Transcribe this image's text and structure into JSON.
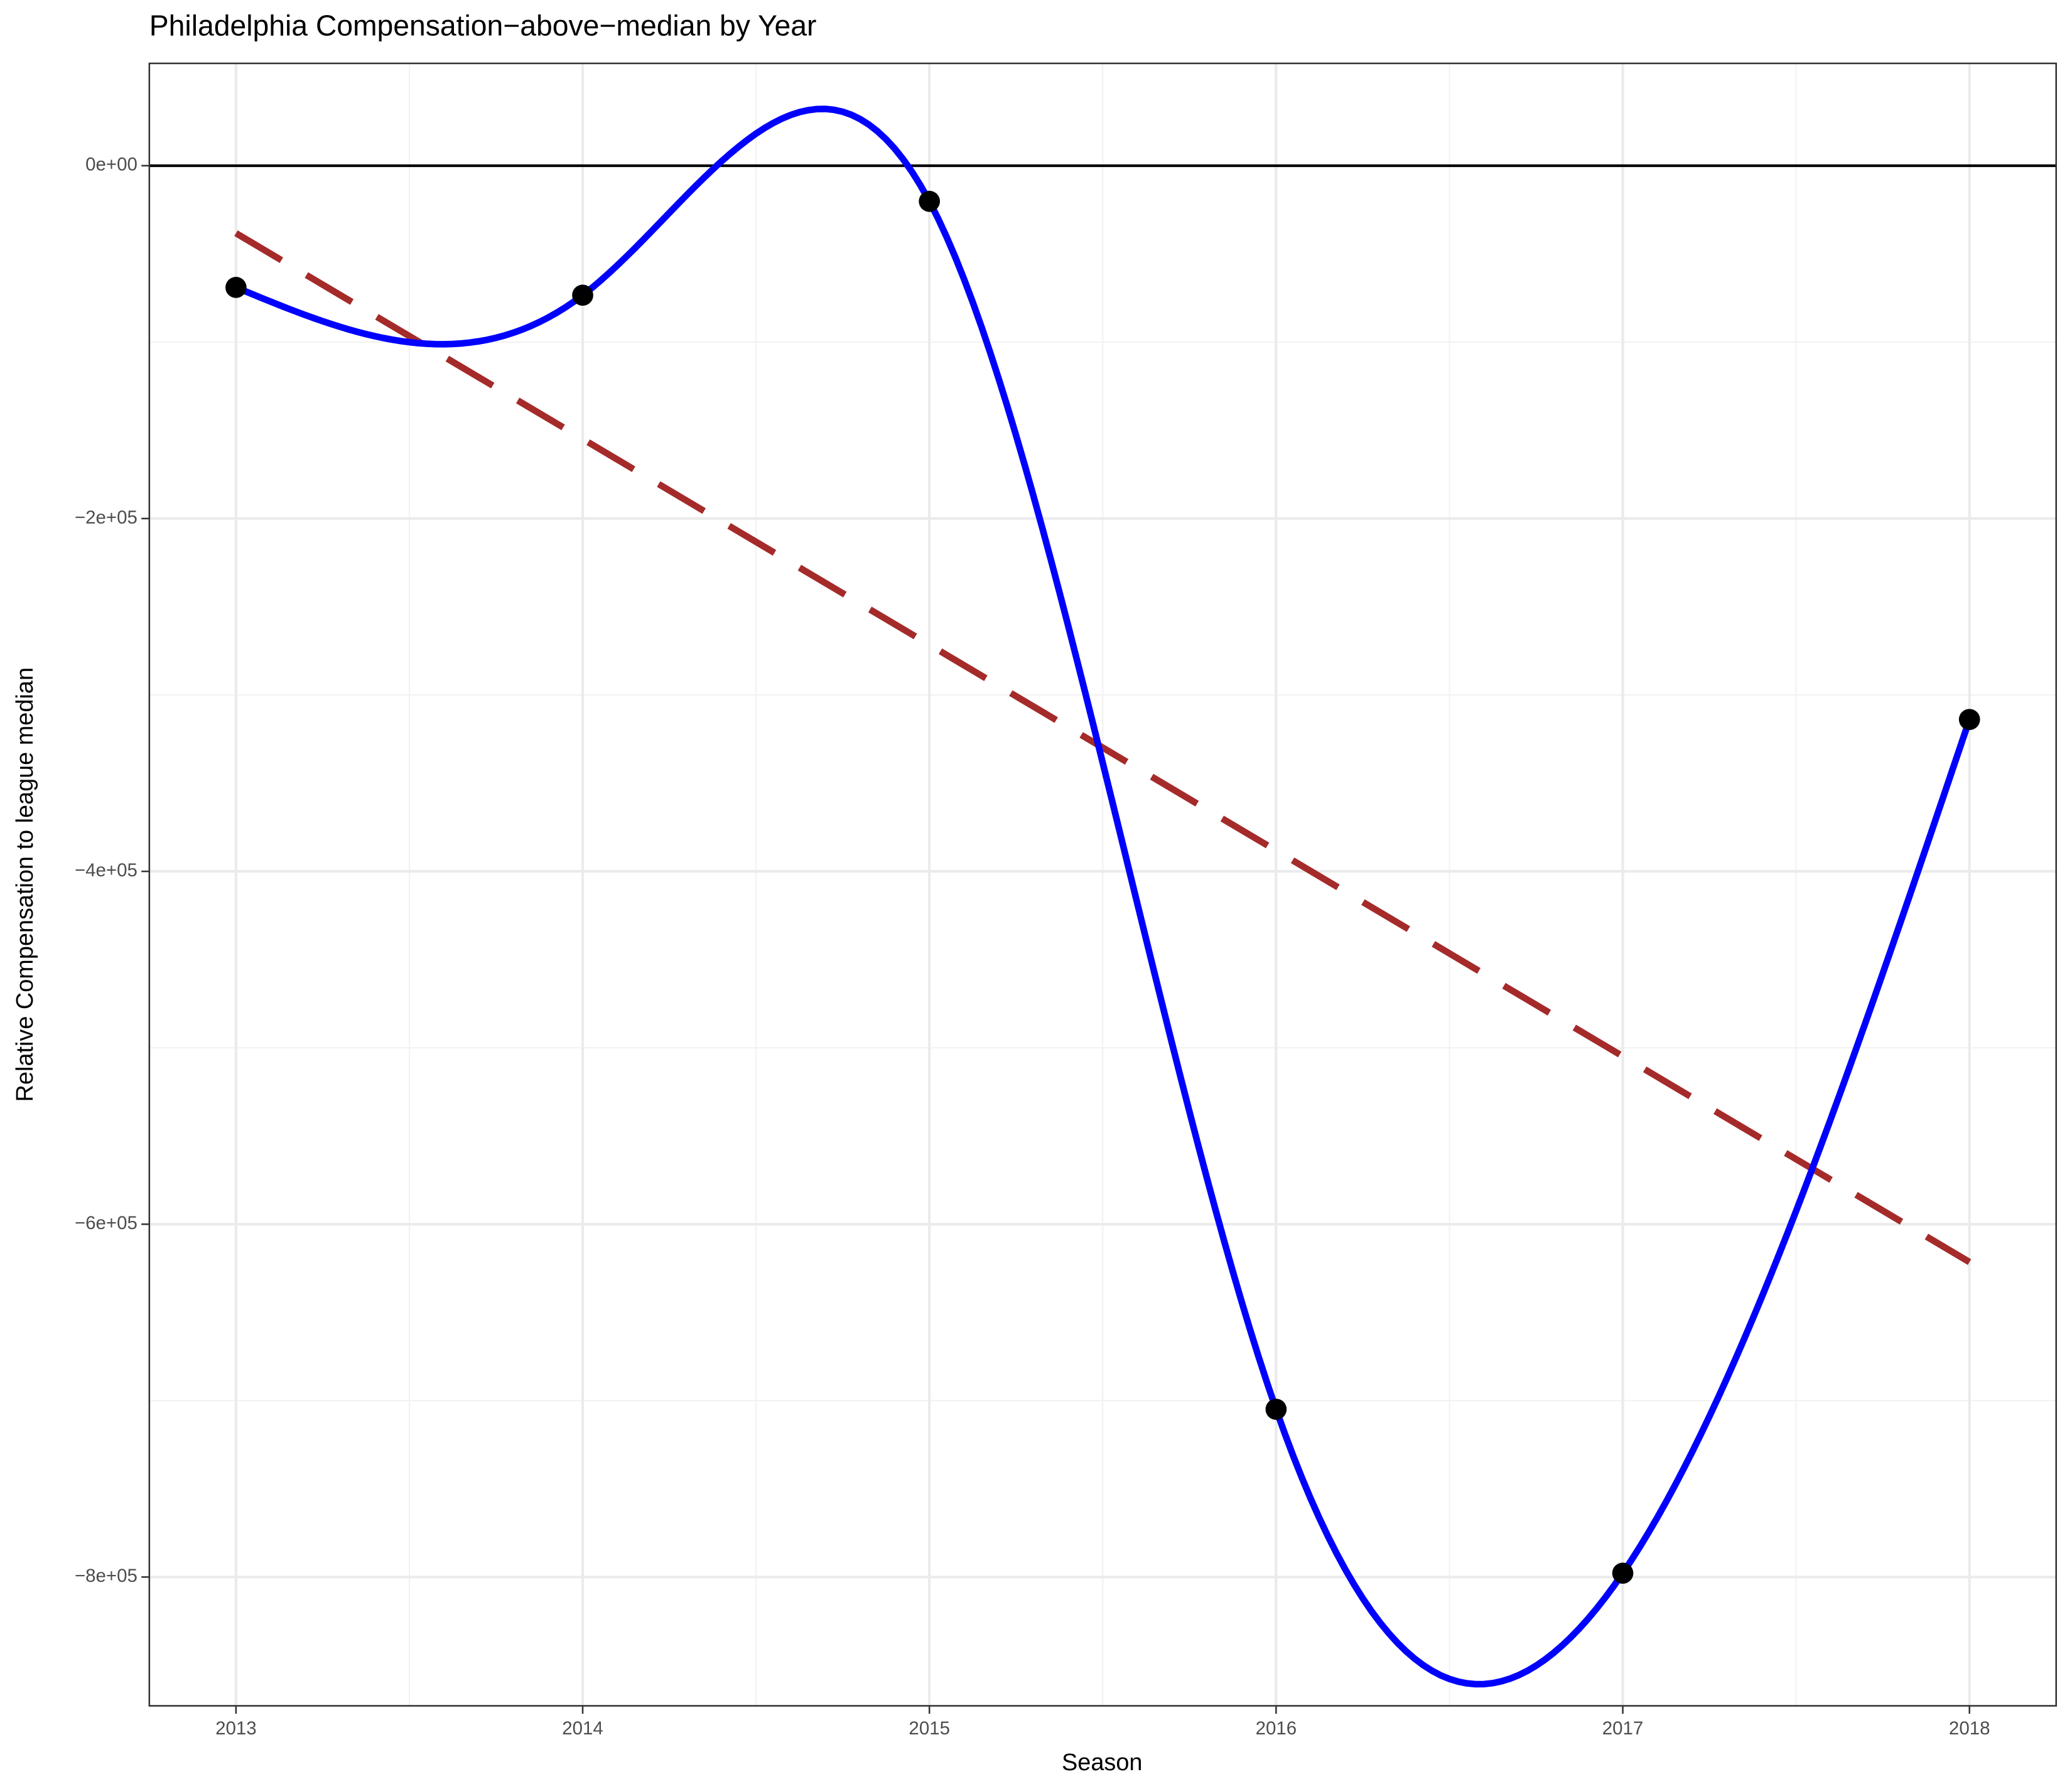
{
  "chart_data": {
    "type": "line",
    "title": "Philadelphia Compensation−above−median by Year",
    "x_label": "Season",
    "y_label": "Relative Compensation to league median",
    "x": [
      2013,
      2014,
      2015,
      2016,
      2017,
      2018
    ],
    "series": [
      {
        "color": "#0000ff",
        "values": [
          -69000,
          -73400,
          -20200,
          -704900,
          -797800,
          -313900
        ]
      }
    ],
    "point_color": "#000000",
    "trend_color": "#a52a2a",
    "reference_line": 0,
    "xlim": [
      2012.75,
      2018.25
    ],
    "ylim": [
      -873000,
      58000
    ],
    "xticks": [
      2013,
      2014,
      2015,
      2016,
      2017,
      2018
    ],
    "yticks": [
      {
        "value": 0,
        "label": "0e+00"
      },
      {
        "value": -200000,
        "label": "−2e+05"
      },
      {
        "value": -400000,
        "label": "−4e+05"
      },
      {
        "value": -600000,
        "label": "−6e+05"
      },
      {
        "value": -800000,
        "label": "−8e+05"
      }
    ],
    "grid": true
  }
}
